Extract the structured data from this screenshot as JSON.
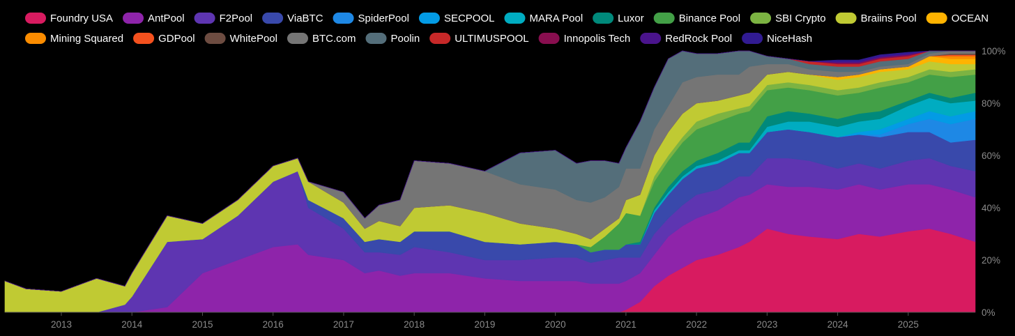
{
  "chart_data": {
    "type": "area",
    "stacked": true,
    "title": "",
    "xlabel": "",
    "ylabel": "",
    "xlim": [
      2012.2,
      2025.95
    ],
    "ylim": [
      0,
      100
    ],
    "x_ticks": [
      2013,
      2014,
      2015,
      2016,
      2017,
      2018,
      2019,
      2020,
      2021,
      2022,
      2023,
      2024,
      2025
    ],
    "x_tick_labels": [
      "2013",
      "2014",
      "2015",
      "2016",
      "2017",
      "2018",
      "2019",
      "2020",
      "2021",
      "2022",
      "2023",
      "2024",
      "2025"
    ],
    "y_ticks": [
      0,
      20,
      40,
      60,
      80,
      100
    ],
    "y_tick_labels": [
      "0%",
      "20%",
      "40%",
      "60%",
      "80%",
      "100%"
    ],
    "legend_position": "top",
    "x": [
      2012.2,
      2012.5,
      2013.0,
      2013.5,
      2013.9,
      2014.0,
      2014.5,
      2015.0,
      2015.5,
      2016.0,
      2016.35,
      2016.5,
      2017.0,
      2017.3,
      2017.5,
      2017.8,
      2018.0,
      2018.5,
      2019.0,
      2019.5,
      2020.0,
      2020.3,
      2020.5,
      2020.7,
      2020.9,
      2021.0,
      2021.2,
      2021.4,
      2021.6,
      2021.8,
      2022.0,
      2022.3,
      2022.6,
      2022.75,
      2023.0,
      2023.3,
      2023.6,
      2024.0,
      2024.3,
      2024.6,
      2025.0,
      2025.3,
      2025.6,
      2025.95
    ],
    "series": [
      {
        "name": "Foundry USA",
        "color": "#d81b60",
        "values": [
          0,
          0,
          0,
          0,
          0,
          0,
          0,
          0,
          0,
          0,
          0,
          0,
          0,
          0,
          0,
          0,
          0,
          0,
          0,
          0,
          0,
          0,
          0,
          0,
          0,
          1,
          4,
          10,
          14,
          17,
          20,
          22,
          25,
          27,
          32,
          30,
          29,
          28,
          30,
          29,
          31,
          32,
          30,
          27
        ]
      },
      {
        "name": "AntPool",
        "color": "#8e24aa",
        "values": [
          0,
          0,
          0,
          0,
          0,
          0,
          2,
          15,
          20,
          25,
          26,
          22,
          20,
          15,
          16,
          14,
          15,
          15,
          13,
          12,
          12,
          12,
          11,
          11,
          11,
          11,
          11,
          12,
          15,
          16,
          16,
          17,
          19,
          18,
          17,
          18,
          19,
          19,
          19,
          18,
          18,
          17,
          17,
          17
        ]
      },
      {
        "name": "F2Pool",
        "color": "#5e35b1",
        "values": [
          0,
          0,
          0,
          0,
          3,
          6,
          25,
          13,
          17,
          25,
          28,
          18,
          12,
          8,
          7,
          8,
          10,
          8,
          7,
          8,
          9,
          9,
          8,
          9,
          10,
          9,
          6,
          8,
          7,
          8,
          9,
          8,
          8,
          7,
          10,
          11,
          10,
          8,
          8,
          8,
          9,
          10,
          9,
          10
        ]
      },
      {
        "name": "ViaBTC",
        "color": "#3949ab",
        "values": [
          0,
          0,
          0,
          0,
          0,
          0,
          0,
          0,
          0,
          0,
          0,
          3,
          4,
          4,
          5,
          5,
          6,
          8,
          7,
          6,
          6,
          5,
          4,
          4,
          3,
          5,
          5,
          8,
          9,
          10,
          10,
          10,
          9,
          9,
          10,
          11,
          11,
          12,
          11,
          12,
          11,
          10,
          9,
          12
        ]
      },
      {
        "name": "SpiderPool",
        "color": "#1e88e5",
        "values": [
          0,
          0,
          0,
          0,
          0,
          0,
          0,
          0,
          0,
          0,
          0,
          0,
          0,
          0,
          0,
          0,
          0,
          0,
          0,
          0,
          0,
          0,
          0,
          0,
          0,
          0,
          0,
          0,
          0,
          0,
          0,
          0,
          0,
          0,
          0,
          0,
          0,
          0,
          0,
          1,
          3,
          5,
          7,
          8
        ]
      },
      {
        "name": "SECPOOL",
        "color": "#039be5",
        "values": [
          0,
          0,
          0,
          0,
          0,
          0,
          0,
          0,
          0,
          0,
          0,
          0,
          0,
          0,
          0,
          0,
          0,
          0,
          0,
          0,
          0,
          0,
          0,
          0,
          0,
          0,
          0,
          0,
          0,
          0,
          0,
          0,
          0,
          0,
          0,
          0,
          0,
          0,
          1,
          2,
          2,
          3,
          3,
          3
        ]
      },
      {
        "name": "MARA Pool",
        "color": "#00acc1",
        "values": [
          0,
          0,
          0,
          0,
          0,
          0,
          0,
          0,
          0,
          0,
          0,
          0,
          0,
          0,
          0,
          0,
          0,
          0,
          0,
          0,
          0,
          0,
          0,
          0,
          0,
          0,
          0,
          1,
          1,
          1,
          1,
          1,
          1,
          1,
          2,
          3,
          4,
          4,
          4,
          4,
          5,
          5,
          5,
          4
        ]
      },
      {
        "name": "Luxor",
        "color": "#00897b",
        "values": [
          0,
          0,
          0,
          0,
          0,
          0,
          0,
          0,
          0,
          0,
          0,
          0,
          0,
          0,
          0,
          0,
          0,
          0,
          0,
          0,
          0,
          0,
          0,
          0,
          0,
          0,
          1,
          1,
          2,
          2,
          2,
          3,
          3,
          3,
          4,
          4,
          3,
          3,
          3,
          3,
          2,
          2,
          2,
          3
        ]
      },
      {
        "name": "Binance Pool",
        "color": "#43a047",
        "values": [
          0,
          0,
          0,
          0,
          0,
          0,
          0,
          0,
          0,
          0,
          0,
          0,
          0,
          0,
          0,
          0,
          0,
          0,
          0,
          0,
          0,
          0,
          2,
          5,
          10,
          12,
          10,
          10,
          10,
          11,
          12,
          12,
          11,
          12,
          10,
          9,
          9,
          9,
          8,
          9,
          7,
          7,
          8,
          7
        ]
      },
      {
        "name": "SBI Crypto",
        "color": "#7cb342",
        "values": [
          0,
          0,
          0,
          0,
          0,
          0,
          0,
          0,
          0,
          0,
          0,
          0,
          0,
          0,
          0,
          0,
          0,
          0,
          0,
          0,
          0,
          0,
          0,
          0,
          0,
          0,
          0,
          2,
          2,
          2,
          3,
          3,
          2,
          2,
          2,
          2,
          2,
          2,
          2,
          2,
          2,
          2,
          2,
          2
        ]
      },
      {
        "name": "Braiins Pool",
        "color": "#c0ca33",
        "values": [
          12,
          9,
          8,
          13,
          7,
          9,
          10,
          6,
          6,
          6,
          5,
          7,
          6,
          5,
          7,
          6,
          9,
          10,
          11,
          8,
          5,
          4,
          3,
          3,
          2,
          5,
          8,
          8,
          9,
          9,
          7,
          5,
          5,
          5,
          4,
          4,
          4,
          4,
          4,
          4,
          3,
          3,
          3,
          2
        ]
      },
      {
        "name": "OCEAN",
        "color": "#ffb300",
        "values": [
          0,
          0,
          0,
          0,
          0,
          0,
          0,
          0,
          0,
          0,
          0,
          0,
          0,
          0,
          0,
          0,
          0,
          0,
          0,
          0,
          0,
          0,
          0,
          0,
          0,
          0,
          0,
          0,
          0,
          0,
          0,
          0,
          0,
          0,
          0,
          0,
          0,
          1,
          1,
          1,
          1,
          2,
          2,
          2
        ]
      },
      {
        "name": "Mining Squared",
        "color": "#fb8c00",
        "values": [
          0,
          0,
          0,
          0,
          0,
          0,
          0,
          0,
          0,
          0,
          0,
          0,
          0,
          0,
          0,
          0,
          0,
          0,
          0,
          0,
          0,
          0,
          0,
          0,
          0,
          0,
          0,
          0,
          0,
          0,
          0,
          0,
          0,
          0,
          0,
          0,
          0,
          0,
          0,
          0,
          0,
          0,
          1,
          1
        ]
      },
      {
        "name": "GDPool",
        "color": "#f4511e",
        "values": [
          0,
          0,
          0,
          0,
          0,
          0,
          0,
          0,
          0,
          0,
          0,
          0,
          0,
          0,
          0,
          0,
          0,
          0,
          0,
          0,
          0,
          0,
          0,
          0,
          0,
          0,
          0,
          0,
          0,
          0,
          0,
          0,
          0,
          0,
          0,
          0,
          0,
          0,
          0,
          0,
          0,
          0,
          0.5,
          0.5
        ]
      },
      {
        "name": "WhitePool",
        "color": "#6d4c41",
        "values": [
          0,
          0,
          0,
          0,
          0,
          0,
          0,
          0,
          0,
          0,
          0,
          0,
          0,
          0,
          0,
          0,
          0,
          0,
          0,
          0,
          0,
          0,
          0,
          0,
          0,
          0,
          0,
          0,
          0,
          0,
          0,
          0,
          0,
          0,
          0,
          0,
          0,
          0,
          0,
          0,
          0,
          0,
          0.5,
          0.5
        ]
      },
      {
        "name": "BTC.com",
        "color": "#757575",
        "values": [
          0,
          0,
          0,
          0,
          0,
          0,
          0,
          0,
          0,
          0,
          0,
          0,
          4,
          4,
          6,
          10,
          18,
          16,
          16,
          15,
          15,
          13,
          14,
          12,
          12,
          12,
          10,
          10,
          10,
          12,
          10,
          10,
          8,
          10,
          4,
          3,
          2,
          2,
          1,
          1,
          1,
          1,
          1,
          1
        ]
      },
      {
        "name": "Poolin",
        "color": "#546e7a",
        "values": [
          0,
          0,
          0,
          0,
          0,
          0,
          0,
          0,
          0,
          0,
          0,
          0,
          0,
          0,
          0,
          0,
          0,
          0,
          0,
          12,
          15,
          14,
          16,
          14,
          9,
          8,
          18,
          16,
          18,
          17,
          9,
          8,
          10,
          8,
          3,
          2,
          2,
          2,
          2,
          2,
          2,
          2,
          2,
          2
        ]
      },
      {
        "name": "ULTIMUSPOOL",
        "color": "#c62828",
        "values": [
          0,
          0,
          0,
          0,
          0,
          0,
          0,
          0,
          0,
          0,
          0,
          0,
          0,
          0,
          0,
          0,
          0,
          0,
          0,
          0,
          0,
          0,
          0,
          0,
          0,
          0,
          0,
          0,
          0,
          0,
          0,
          0,
          0,
          0,
          0,
          0,
          1,
          1,
          1,
          1,
          1,
          1,
          1,
          1
        ]
      },
      {
        "name": "Innopolis Tech",
        "color": "#880e4f",
        "values": [
          0,
          0,
          0,
          0,
          0,
          0,
          0,
          0,
          0,
          0,
          0,
          0,
          0,
          0,
          0,
          0,
          0,
          0,
          0,
          0,
          0,
          0,
          0,
          0,
          0,
          0,
          0,
          0,
          0,
          0,
          0,
          0,
          0,
          0,
          0,
          0,
          0,
          0.5,
          0.5,
          0.5,
          0.5,
          0.5,
          0.5,
          0.5
        ]
      },
      {
        "name": "RedRock Pool",
        "color": "#4a148c",
        "values": [
          0,
          0,
          0,
          0,
          0,
          0,
          0,
          0,
          0,
          0,
          0,
          0,
          0,
          0,
          0,
          0,
          0,
          0,
          0,
          0,
          0,
          0,
          0,
          0,
          0,
          0,
          0,
          0,
          0,
          0,
          0,
          0,
          0,
          0,
          0,
          0,
          0,
          0.5,
          0.5,
          0.5,
          0.5,
          0.5,
          0.5,
          0.5
        ]
      },
      {
        "name": "NiceHash",
        "color": "#311b92",
        "values": [
          0,
          0,
          0,
          0,
          0,
          0,
          0,
          0,
          0,
          0,
          0,
          0,
          0,
          0,
          0,
          0,
          0,
          0,
          0,
          0,
          0,
          0,
          0,
          0,
          0,
          0,
          0,
          0,
          0,
          0,
          0,
          0,
          0,
          0,
          0,
          0,
          0,
          0.5,
          0.5,
          0.5,
          0.5,
          0.5,
          0.5,
          0.5
        ]
      }
    ]
  }
}
